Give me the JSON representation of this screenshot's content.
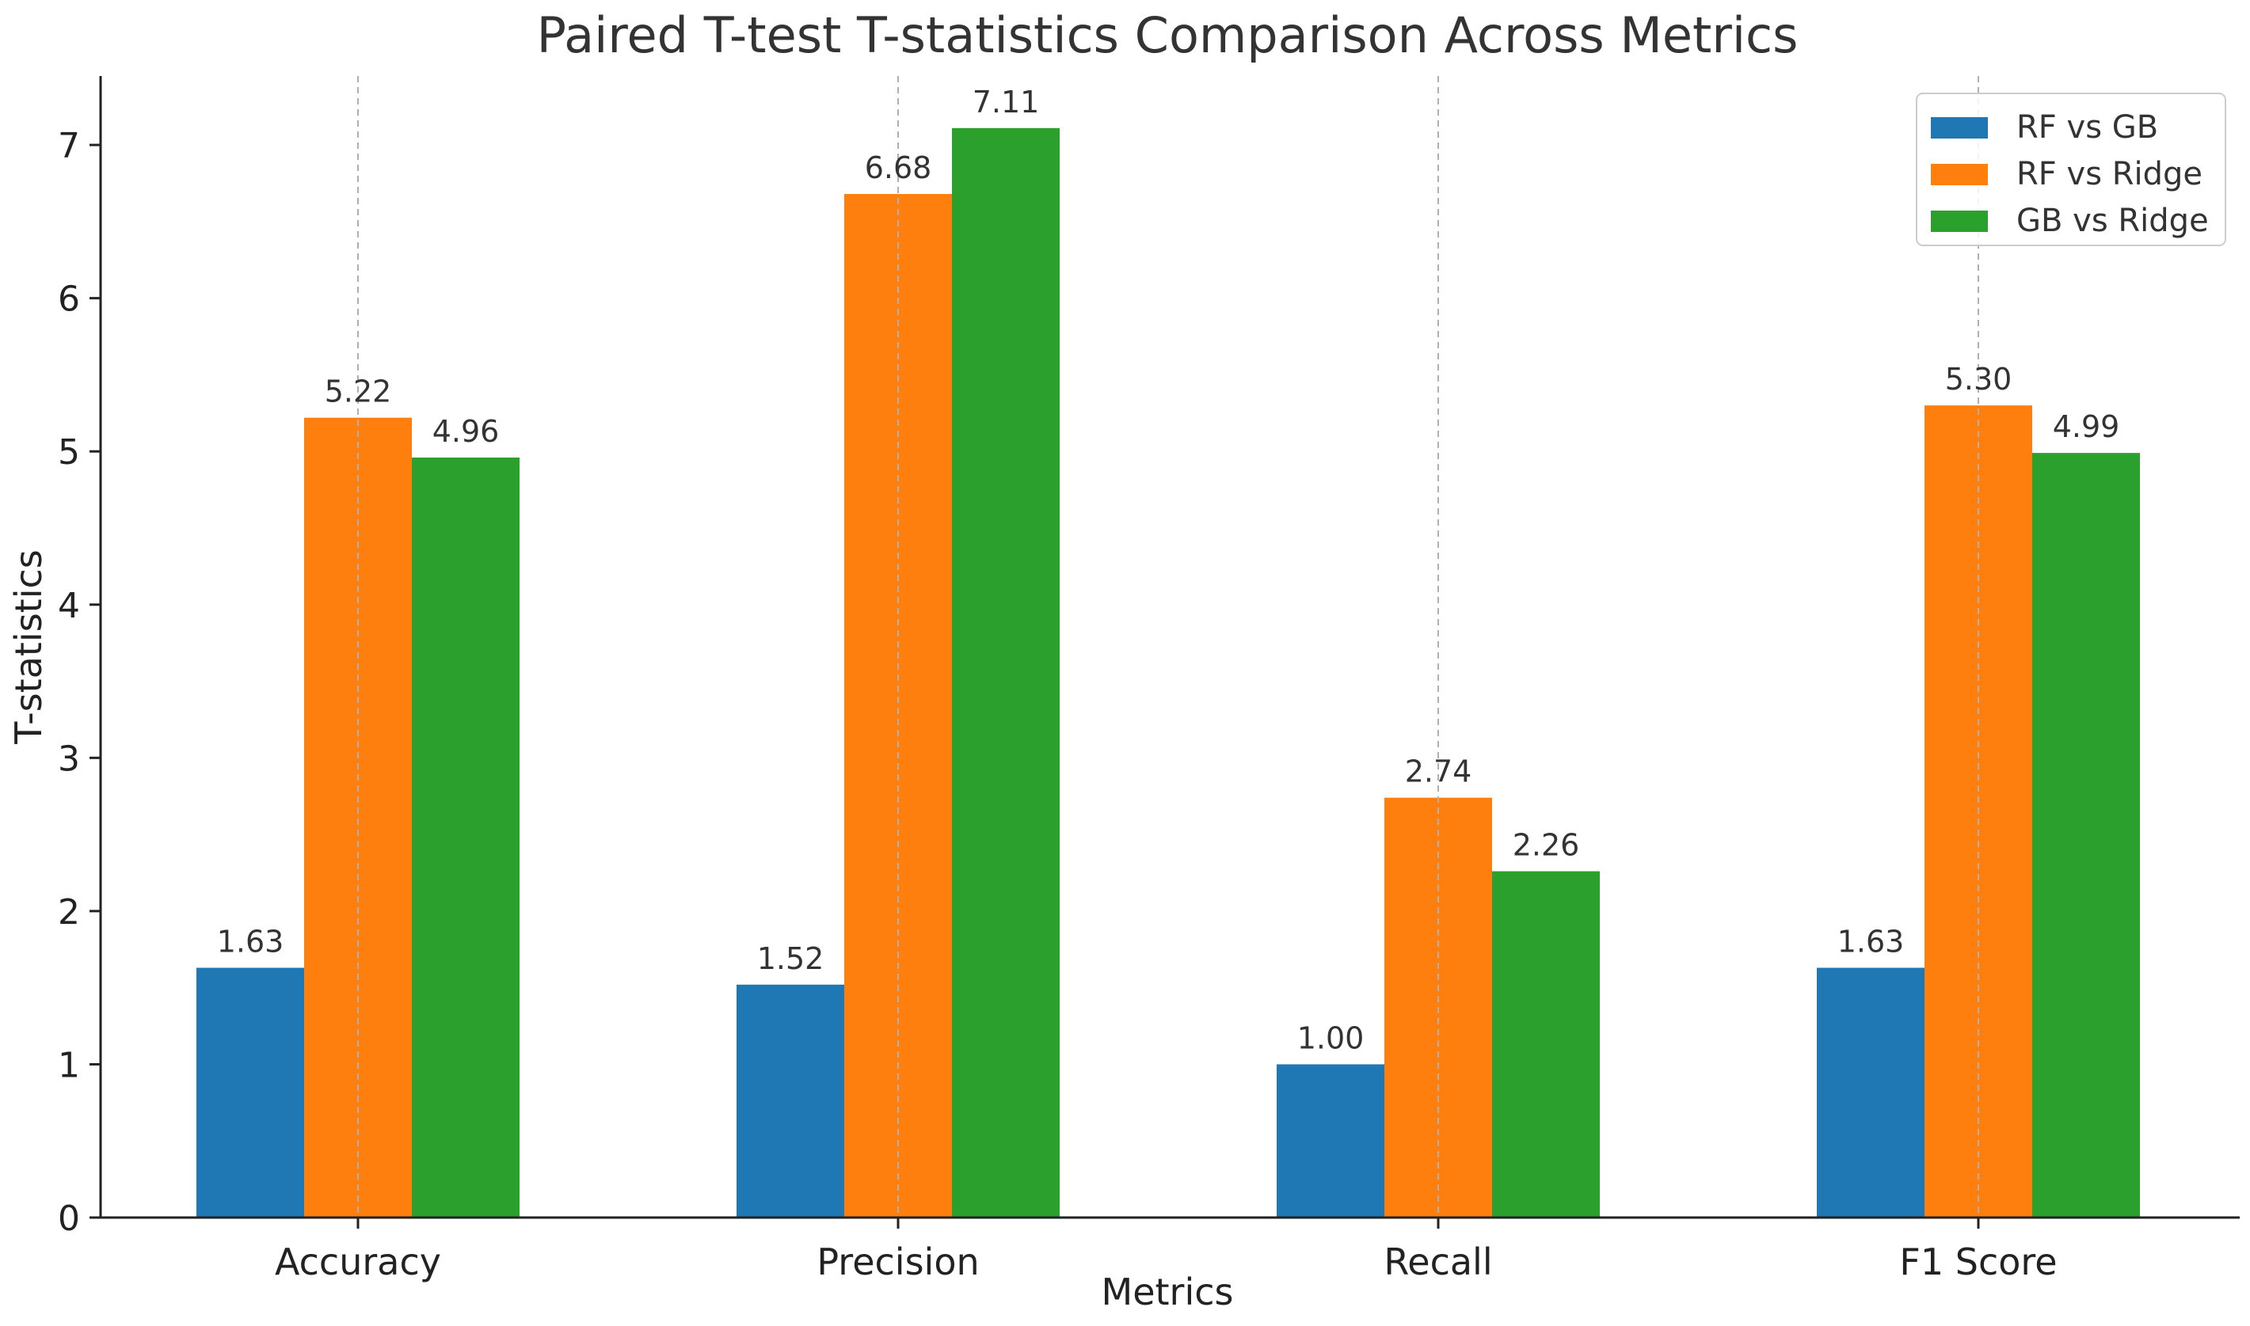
{
  "chart_data": {
    "type": "bar",
    "title": "Paired T-test T-statistics Comparison Across Metrics",
    "xlabel": "Metrics",
    "ylabel": "T-statistics",
    "categories": [
      "Accuracy",
      "Precision",
      "Recall",
      "F1 Score"
    ],
    "series": [
      {
        "name": "RF vs GB",
        "values": [
          1.63,
          1.52,
          1.0,
          1.63
        ],
        "labels": [
          "1.63",
          "1.52",
          "1.00",
          "1.63"
        ],
        "color": "#1f77b4"
      },
      {
        "name": "RF vs Ridge",
        "values": [
          5.22,
          6.68,
          2.74,
          5.3
        ],
        "labels": [
          "5.22",
          "6.68",
          "2.74",
          "5.30"
        ],
        "color": "#ff7f0e"
      },
      {
        "name": "GB vs Ridge",
        "values": [
          4.96,
          7.11,
          2.26,
          4.99
        ],
        "labels": [
          "4.96",
          "7.11",
          "2.26",
          "4.99"
        ],
        "color": "#2ca02c"
      }
    ],
    "ylim": [
      0,
      7.45
    ],
    "yticks": [
      0,
      1,
      2,
      3,
      4,
      5,
      6,
      7
    ],
    "grid": "x-dashed",
    "legend": "top-right"
  }
}
